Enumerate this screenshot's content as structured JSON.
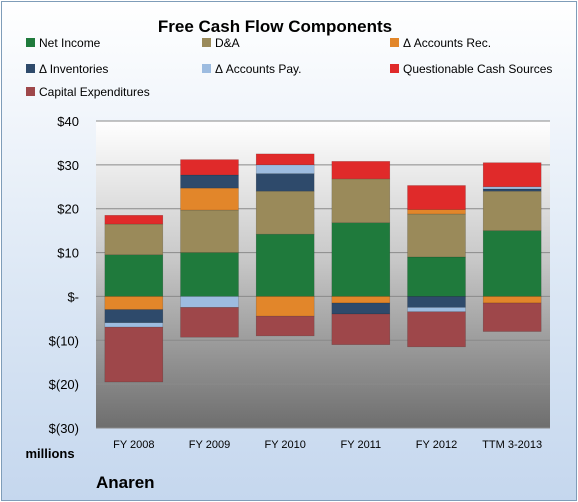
{
  "chart_data": {
    "type": "bar",
    "stacked": true,
    "title": "Free Cash Flow Components",
    "units_label": "millions",
    "company": "Anaren",
    "categories": [
      "FY 2008",
      "FY 2009",
      "FY 2010",
      "FY 2011",
      "FY 2012",
      "TTM 3-2013"
    ],
    "y_ticks": [
      "$40",
      "$30",
      "$20",
      "$10",
      "$-",
      "$(10)",
      "$(20)",
      "$(30)"
    ],
    "ylim": [
      -30,
      40
    ],
    "grid": true,
    "legend_position": "top",
    "series": [
      {
        "name": "Net Income",
        "color": "#1f7a3c",
        "values": [
          9.5,
          10.0,
          14.2,
          16.8,
          9.0,
          15.0
        ]
      },
      {
        "name": "D&A",
        "color": "#9a8a5a",
        "values": [
          7.0,
          9.7,
          9.8,
          10.0,
          9.8,
          9.0
        ]
      },
      {
        "name": "Δ Accounts Rec.",
        "color": "#e2862a",
        "values": [
          -3.0,
          5.0,
          -4.5,
          -1.5,
          1.0,
          -1.5
        ]
      },
      {
        "name": "Δ Inventories",
        "color": "#2e4a6b",
        "values": [
          -3.0,
          3.0,
          4.0,
          -2.5,
          -2.5,
          0.5
        ]
      },
      {
        "name": "Δ Accounts Pay.",
        "color": "#9dbce0",
        "values": [
          -1.0,
          -2.5,
          2.0,
          0,
          -1.0,
          0.5
        ]
      },
      {
        "name": "Questionable Cash Sources",
        "color": "#e02a2a",
        "values": [
          2.0,
          3.5,
          2.5,
          4.0,
          5.5,
          5.5
        ]
      },
      {
        "name": "Capital Expenditures",
        "color": "#9e474a",
        "values": [
          -12.5,
          -6.8,
          -4.5,
          -7.0,
          -8.0,
          -6.5
        ]
      }
    ]
  }
}
